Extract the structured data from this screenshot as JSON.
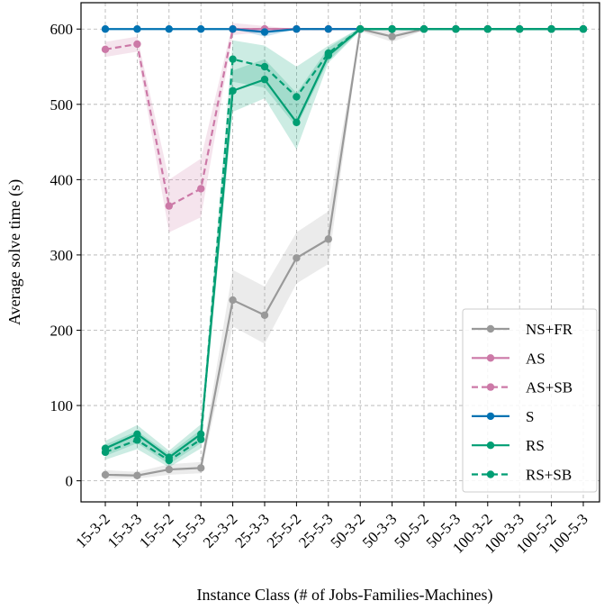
{
  "chart_data": {
    "type": "line",
    "title": "",
    "xlabel": "Instance Class (# of Jobs-Families-Machines)",
    "ylabel": "Average solve time (s)",
    "ylim": [
      -28,
      635
    ],
    "yticks": [
      0,
      100,
      200,
      300,
      400,
      500,
      600
    ],
    "grid": true,
    "legend_position": "bottom-right",
    "categories": [
      "15-3-2",
      "15-3-3",
      "15-5-2",
      "15-5-3",
      "25-3-2",
      "25-3-3",
      "25-5-2",
      "25-5-3",
      "50-3-2",
      "50-3-3",
      "50-5-2",
      "50-5-3",
      "100-3-2",
      "100-3-3",
      "100-5-2",
      "100-5-3"
    ],
    "series": [
      {
        "name": "NS+FR",
        "color": "#999999",
        "dash": false,
        "values": [
          8,
          7,
          15,
          17,
          240,
          220,
          296,
          321,
          600,
          590,
          600,
          600,
          600,
          600,
          600,
          600
        ],
        "band_lower": [
          3,
          3,
          8,
          10,
          205,
          182,
          262,
          288,
          597,
          583,
          598,
          600,
          600,
          600,
          600,
          600
        ],
        "band_upper": [
          14,
          12,
          22,
          25,
          280,
          258,
          330,
          358,
          603,
          597,
          602,
          600,
          600,
          600,
          600,
          600
        ]
      },
      {
        "name": "AS",
        "color": "#cc79a7",
        "dash": false,
        "values": [
          null,
          null,
          null,
          null,
          600,
          600,
          600,
          600,
          600,
          600,
          600,
          600,
          600,
          600,
          600,
          600
        ],
        "band_lower": [],
        "band_upper": []
      },
      {
        "name": "AS+SB",
        "color": "#cc79a7",
        "dash": true,
        "values": [
          573,
          580,
          365,
          388,
          600,
          600,
          600,
          600,
          600,
          600,
          600,
          600,
          600,
          600,
          600,
          600
        ],
        "band_lower": [
          563,
          570,
          330,
          350,
          592,
          596,
          600,
          600,
          600,
          600,
          600,
          600,
          600,
          600,
          600,
          600
        ],
        "band_upper": [
          583,
          590,
          400,
          428,
          608,
          604,
          600,
          600,
          600,
          600,
          600,
          600,
          600,
          600,
          600,
          600
        ]
      },
      {
        "name": "S",
        "color": "#0072b2",
        "dash": false,
        "values": [
          600,
          600,
          600,
          600,
          600,
          596,
          600,
          600,
          600,
          600,
          600,
          600,
          600,
          600,
          600,
          600
        ],
        "band_lower": [
          600,
          600,
          600,
          600,
          600,
          590,
          600,
          600,
          600,
          600,
          600,
          600,
          600,
          600,
          600,
          600
        ],
        "band_upper": [
          600,
          600,
          600,
          600,
          600,
          602,
          600,
          600,
          600,
          600,
          600,
          600,
          600,
          600,
          600,
          600
        ]
      },
      {
        "name": "RS",
        "color": "#009e73",
        "dash": false,
        "values": [
          43,
          62,
          31,
          62,
          518,
          533,
          476,
          565,
          600,
          600,
          600,
          600,
          600,
          600,
          600,
          600
        ],
        "band_lower": [
          33,
          50,
          22,
          50,
          490,
          508,
          440,
          555,
          598,
          600,
          600,
          600,
          600,
          600,
          600,
          600
        ],
        "band_upper": [
          53,
          74,
          40,
          75,
          545,
          560,
          515,
          575,
          602,
          600,
          600,
          600,
          600,
          600,
          600,
          600
        ]
      },
      {
        "name": "RS+SB",
        "color": "#009e73",
        "dash": true,
        "values": [
          38,
          54,
          27,
          55,
          560,
          550,
          510,
          568,
          600,
          600,
          600,
          600,
          600,
          600,
          600,
          600
        ],
        "band_lower": [
          28,
          42,
          18,
          43,
          530,
          522,
          470,
          558,
          598,
          600,
          600,
          600,
          600,
          600,
          600,
          600
        ],
        "band_upper": [
          48,
          66,
          36,
          68,
          585,
          578,
          550,
          578,
          602,
          600,
          600,
          600,
          600,
          600,
          600,
          600
        ]
      }
    ]
  }
}
